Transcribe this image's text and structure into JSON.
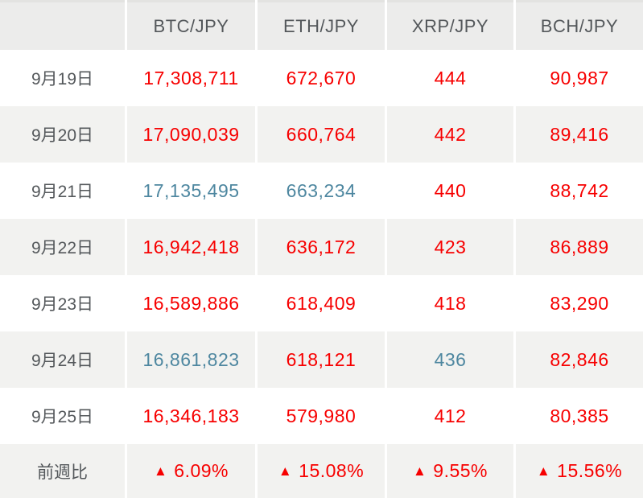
{
  "colors": {
    "down": "#f70000",
    "up": "#4e87a0",
    "text": "#54585b",
    "header_bg": "#ececeb",
    "stripe_bg": "#f2f2f0",
    "header_border": "#e3e3e1"
  },
  "table": {
    "header": [
      "",
      "BTC/JPY",
      "ETH/JPY",
      "XRP/JPY",
      "BCH/JPY"
    ],
    "rows": [
      {
        "label": "9月19日",
        "cells": [
          {
            "value": "17,308,711",
            "trend": "down"
          },
          {
            "value": "672,670",
            "trend": "down"
          },
          {
            "value": "444",
            "trend": "down"
          },
          {
            "value": "90,987",
            "trend": "down"
          }
        ]
      },
      {
        "label": "9月20日",
        "cells": [
          {
            "value": "17,090,039",
            "trend": "down"
          },
          {
            "value": "660,764",
            "trend": "down"
          },
          {
            "value": "442",
            "trend": "down"
          },
          {
            "value": "89,416",
            "trend": "down"
          }
        ]
      },
      {
        "label": "9月21日",
        "cells": [
          {
            "value": "17,135,495",
            "trend": "up"
          },
          {
            "value": "663,234",
            "trend": "up"
          },
          {
            "value": "440",
            "trend": "down"
          },
          {
            "value": "88,742",
            "trend": "down"
          }
        ]
      },
      {
        "label": "9月22日",
        "cells": [
          {
            "value": "16,942,418",
            "trend": "down"
          },
          {
            "value": "636,172",
            "trend": "down"
          },
          {
            "value": "423",
            "trend": "down"
          },
          {
            "value": "86,889",
            "trend": "down"
          }
        ]
      },
      {
        "label": "9月23日",
        "cells": [
          {
            "value": "16,589,886",
            "trend": "down"
          },
          {
            "value": "618,409",
            "trend": "down"
          },
          {
            "value": "418",
            "trend": "down"
          },
          {
            "value": "83,290",
            "trend": "down"
          }
        ]
      },
      {
        "label": "9月24日",
        "cells": [
          {
            "value": "16,861,823",
            "trend": "up"
          },
          {
            "value": "618,121",
            "trend": "down"
          },
          {
            "value": "436",
            "trend": "up"
          },
          {
            "value": "82,846",
            "trend": "down"
          }
        ]
      },
      {
        "label": "9月25日",
        "cells": [
          {
            "value": "16,346,183",
            "trend": "down"
          },
          {
            "value": "579,980",
            "trend": "down"
          },
          {
            "value": "412",
            "trend": "down"
          },
          {
            "value": "80,385",
            "trend": "down"
          }
        ]
      }
    ],
    "summary": {
      "label": "前週比",
      "cells": [
        {
          "icon": "▲",
          "value": "6.09%"
        },
        {
          "icon": "▲",
          "value": "15.08%"
        },
        {
          "icon": "▲",
          "value": "9.55%"
        },
        {
          "icon": "▲",
          "value": "15.56%"
        }
      ]
    }
  },
  "chart_data": {
    "type": "table",
    "title": "",
    "columns": [
      "",
      "BTC/JPY",
      "ETH/JPY",
      "XRP/JPY",
      "BCH/JPY"
    ],
    "rows": [
      [
        "9月19日",
        17308711,
        672670,
        444,
        90987
      ],
      [
        "9月20日",
        17090039,
        660764,
        442,
        89416
      ],
      [
        "9月21日",
        17135495,
        663234,
        440,
        88742
      ],
      [
        "9月22日",
        16942418,
        636172,
        423,
        86889
      ],
      [
        "9月23日",
        16589886,
        618409,
        418,
        83290
      ],
      [
        "9月24日",
        16861823,
        618121,
        436,
        82846
      ],
      [
        "9月25日",
        16346183,
        579980,
        412,
        80385
      ],
      [
        "前週比",
        "▲ 6.09%",
        "▲ 15.08%",
        "▲ 9.55%",
        "▲ 15.56%"
      ]
    ],
    "cell_color_legend": {
      "red": "lower than previous day",
      "blue": "higher than previous day"
    }
  }
}
